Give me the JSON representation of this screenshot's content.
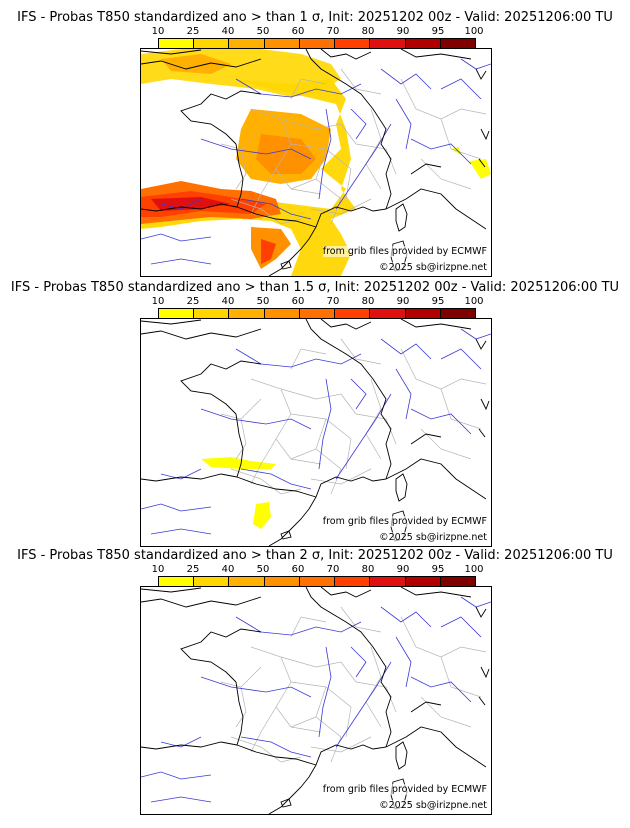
{
  "colorbar": {
    "ticks": [
      "10",
      "25",
      "40",
      "50",
      "60",
      "70",
      "80",
      "90",
      "95",
      "100"
    ],
    "colors": [
      "#ffff00",
      "#ffd700",
      "#ffb000",
      "#ff9000",
      "#ff7000",
      "#ff4000",
      "#e01010",
      "#b00000",
      "#800000"
    ]
  },
  "panels": [
    {
      "title": "IFS - Probas T850  standardized ano > than 1 σ, Init: 20251202 00z - Valid: 20251206:00 TU",
      "source_credit": "from grib files provided by ECMWF",
      "copyright": "©2025 sb@irizpne.net"
    },
    {
      "title": "IFS - Probas T850  standardized ano > than 1.5 σ, Init: 20251202 00z - Valid: 20251206:00 TU",
      "source_credit": "from grib files provided by ECMWF",
      "copyright": "©2025 sb@irizpne.net"
    },
    {
      "title": "IFS - Probas T850  standardized ano > than 2 σ, Init: 20251202 00z - Valid: 20251206:00 TU",
      "source_credit": "from grib files provided by ECMWF",
      "copyright": "©2025 sb@irizpne.net"
    }
  ],
  "colors": {
    "coast": "#000000",
    "rivers": "#3030d0",
    "borders": "#b0b0b0"
  }
}
